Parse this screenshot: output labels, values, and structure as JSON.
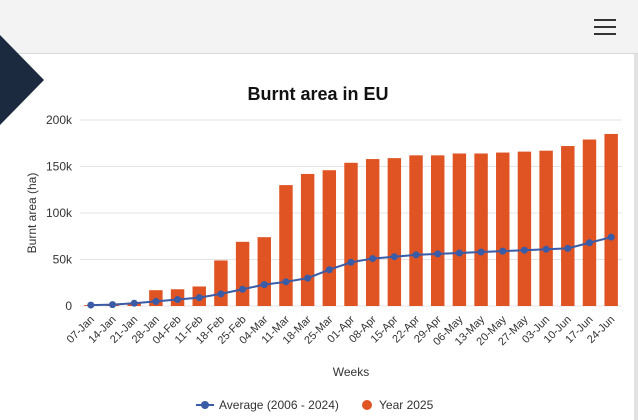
{
  "header": {
    "menu_icon": "hamburger-menu-icon"
  },
  "colors": {
    "bar": "#e05423",
    "line": "#3a5ba6",
    "arrow": "#1c2a3f",
    "grid": "#e4e4e4",
    "text": "#333333"
  },
  "chart_data": {
    "type": "bar+line",
    "title": "Burnt area in EU",
    "xlabel": "Weeks",
    "ylabel": "Burnt area (ha)",
    "ylim": [
      0,
      200000
    ],
    "yticks": [
      0,
      50000,
      100000,
      150000,
      200000
    ],
    "ytick_labels": [
      "0",
      "50k",
      "100k",
      "150k",
      "200k"
    ],
    "grid": true,
    "legend_position": "bottom",
    "categories": [
      "07-Jan",
      "14-Jan",
      "21-Jan",
      "28-Jan",
      "04-Feb",
      "11-Feb",
      "18-Feb",
      "25-Feb",
      "04-Mar",
      "11-Mar",
      "18-Mar",
      "25-Mar",
      "01-Apr",
      "08-Apr",
      "15-Apr",
      "22-Apr",
      "29-Apr",
      "06-May",
      "13-May",
      "20-May",
      "27-May",
      "03-Jun",
      "10-Jun",
      "17-Jun",
      "24-Jun"
    ],
    "series": [
      {
        "name": "Average (2006 - 2024)",
        "type": "line",
        "values": [
          1000,
          1500,
          3000,
          5000,
          7000,
          9000,
          13000,
          18000,
          23000,
          26000,
          30000,
          39000,
          47000,
          51000,
          53000,
          55000,
          56000,
          57000,
          58000,
          59000,
          60000,
          61000,
          62000,
          68000,
          74000
        ]
      },
      {
        "name": "Year 2025",
        "type": "bar",
        "values": [
          1000,
          1500,
          3000,
          17000,
          18000,
          21000,
          49000,
          69000,
          74000,
          130000,
          142000,
          146000,
          154000,
          158000,
          159000,
          162000,
          162000,
          164000,
          164000,
          165000,
          166000,
          167000,
          172000,
          179000,
          185000
        ]
      }
    ]
  }
}
